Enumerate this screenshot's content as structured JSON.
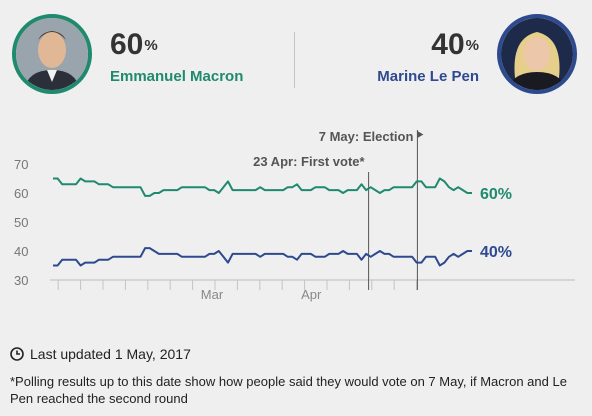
{
  "header": {
    "left": {
      "percent": "60",
      "percent_sign": "%",
      "name": "Emmanuel Macron",
      "color": "#1f8a6e",
      "avatar": "macron-photo"
    },
    "right": {
      "percent": "40",
      "percent_sign": "%",
      "name": "Marine Le Pen",
      "color": "#2e4a8f",
      "avatar": "le-pen-photo"
    }
  },
  "chart_data": {
    "type": "line",
    "x_start": "2017-01-15",
    "ylim": [
      30,
      72
    ],
    "y_ticks": [
      "70",
      "60",
      "50",
      "40",
      "30"
    ],
    "x_ticks": [
      {
        "label": "Mar",
        "date": "2017-03-01"
      },
      {
        "label": "Apr",
        "date": "2017-04-01"
      }
    ],
    "series": [
      {
        "name": "Emmanuel Macron",
        "color": "#1f8a6e",
        "end_label": "60%",
        "values": [
          65,
          65,
          63,
          63,
          63,
          63,
          65,
          64,
          64,
          64,
          63,
          63,
          63,
          62,
          62,
          62,
          62,
          62,
          62,
          62,
          59,
          59,
          60,
          60,
          61,
          61,
          61,
          61,
          62,
          62,
          62,
          62,
          62,
          62,
          61,
          61,
          60,
          62,
          64,
          61,
          61,
          61,
          61,
          61,
          61,
          62,
          61,
          61,
          61,
          61,
          61,
          62,
          62,
          63,
          61,
          61,
          61,
          62,
          62,
          62,
          61,
          61,
          61,
          60,
          61,
          61,
          61,
          63,
          61,
          62,
          61,
          60,
          61,
          61,
          62,
          62,
          62,
          62,
          62,
          64,
          64,
          62,
          62,
          62,
          65,
          64,
          62,
          61,
          62,
          61,
          60,
          60
        ]
      },
      {
        "name": "Marine Le Pen",
        "color": "#2e4a8f",
        "end_label": "40%",
        "values": [
          35,
          35,
          37,
          37,
          37,
          37,
          35,
          36,
          36,
          36,
          37,
          37,
          37,
          38,
          38,
          38,
          38,
          38,
          38,
          38,
          41,
          41,
          40,
          39,
          39,
          39,
          39,
          39,
          38,
          38,
          38,
          38,
          38,
          38,
          39,
          39,
          40,
          38,
          36,
          39,
          39,
          39,
          39,
          39,
          39,
          38,
          39,
          39,
          39,
          39,
          39,
          38,
          38,
          37,
          39,
          39,
          39,
          38,
          38,
          38,
          39,
          39,
          39,
          40,
          39,
          39,
          39,
          37,
          39,
          38,
          39,
          40,
          39,
          39,
          38,
          38,
          38,
          38,
          38,
          36,
          36,
          38,
          38,
          38,
          35,
          36,
          38,
          39,
          38,
          39,
          40,
          40
        ]
      }
    ],
    "markers": [
      {
        "label": "23 Apr: First vote*",
        "date": "2017-04-23"
      },
      {
        "label": "7 May: Election",
        "date": "2017-05-07"
      }
    ],
    "grid": false
  },
  "footer": {
    "updated": "Last updated 1 May, 2017",
    "note": "*Polling results up to this date show how people said they would vote on 7 May, if Macron and Le Pen reached the second round"
  }
}
